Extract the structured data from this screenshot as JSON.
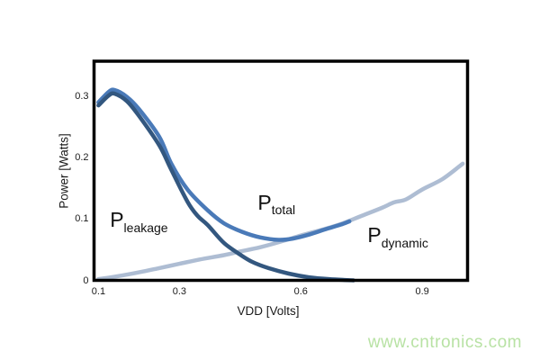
{
  "watermark": {
    "text": "www.cntronics.com",
    "color": "#b8e2a4"
  },
  "chart_data": {
    "type": "line",
    "title": "",
    "xlabel": "VDD [Volts]",
    "ylabel": "Power [Watts]",
    "xlim": [
      0.089,
      1.012
    ],
    "ylim": [
      0,
      0.357
    ],
    "grid": false,
    "legend_position": "none",
    "frame_color": "#000000",
    "x_ticks": {
      "values": [
        0.1,
        0.3,
        0.6,
        0.9
      ],
      "labels": [
        "0.1",
        "0.3",
        "0.6",
        "0.9"
      ]
    },
    "y_ticks": {
      "values": [
        0,
        0.1,
        0.2,
        0.3
      ],
      "labels": [
        "0",
        "0.1",
        "0.2",
        "0.3"
      ]
    },
    "series": [
      {
        "name": "P_dynamic",
        "color": "#aebdd3",
        "line_width": 4.5,
        "x": [
          0.1,
          0.15,
          0.2,
          0.25,
          0.3,
          0.35,
          0.41,
          0.45,
          0.5,
          0.55,
          0.6,
          0.65,
          0.7,
          0.75,
          0.8,
          0.83,
          0.86,
          0.9,
          0.95,
          1.0
        ],
        "y": [
          0.002,
          0.007,
          0.013,
          0.02,
          0.027,
          0.034,
          0.041,
          0.047,
          0.054,
          0.063,
          0.073,
          0.082,
          0.092,
          0.105,
          0.118,
          0.127,
          0.132,
          0.148,
          0.165,
          0.19
        ]
      },
      {
        "name": "P_total",
        "color": "#4a7ab8",
        "line_width": 4.5,
        "x": [
          0.1,
          0.125,
          0.14,
          0.17,
          0.2,
          0.25,
          0.28,
          0.32,
          0.37,
          0.41,
          0.455,
          0.5,
          0.545,
          0.58,
          0.62,
          0.66,
          0.7,
          0.72
        ],
        "y": [
          0.29,
          0.307,
          0.31,
          0.299,
          0.279,
          0.234,
          0.19,
          0.148,
          0.114,
          0.093,
          0.079,
          0.07,
          0.066,
          0.068,
          0.0745,
          0.083,
          0.091,
          0.096
        ]
      },
      {
        "name": "P_leakage",
        "color": "#33577f",
        "line_width": 4.5,
        "x": [
          0.1,
          0.125,
          0.14,
          0.17,
          0.2,
          0.25,
          0.28,
          0.32,
          0.345,
          0.37,
          0.41,
          0.45,
          0.48,
          0.52,
          0.57,
          0.62,
          0.67,
          0.73
        ],
        "y": [
          0.285,
          0.301,
          0.304,
          0.292,
          0.268,
          0.22,
          0.18,
          0.128,
          0.105,
          0.09,
          0.061,
          0.042,
          0.03,
          0.02,
          0.011,
          0.005,
          0.002,
          0.0
        ]
      }
    ],
    "annotations": [
      {
        "main": "P",
        "sub": "leakage",
        "x": 0.2,
        "y": 0.097
      },
      {
        "main": "P",
        "sub": "total",
        "x": 0.54,
        "y": 0.126
      },
      {
        "main": "P",
        "sub": "dynamic",
        "x": 0.84,
        "y": 0.072
      }
    ]
  }
}
